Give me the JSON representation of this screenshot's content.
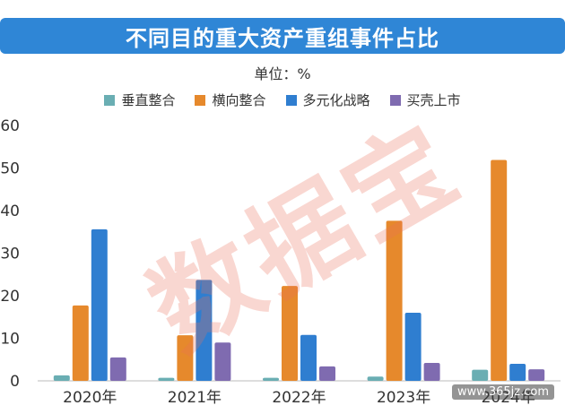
{
  "title": "不同目的重大资产重组事件占比",
  "unit_label": "单位：%",
  "watermark": "数据宝",
  "site_mark": "www.365jz.com",
  "colors": {
    "title_bg": "#2f86d6",
    "vertical": "#6aaeb3",
    "horizontal": "#e6892c",
    "diversified": "#2f7ed0",
    "backdoor": "#7f6bb0"
  },
  "chart_data": {
    "type": "bar",
    "categories": [
      "2020年",
      "2021年",
      "2022年",
      "2023年",
      "2024年"
    ],
    "series": [
      {
        "name": "垂直整合",
        "color": "#6aaeb3",
        "values": [
          1.3,
          0.7,
          0.7,
          1.0,
          2.6
        ]
      },
      {
        "name": "横向整合",
        "color": "#e6892c",
        "values": [
          17.7,
          10.7,
          22.3,
          37.6,
          51.9
        ]
      },
      {
        "name": "多元化战略",
        "color": "#2f7ed0",
        "values": [
          35.6,
          23.7,
          10.8,
          16.0,
          4.0
        ]
      },
      {
        "name": "买壳上市",
        "color": "#7f6bb0",
        "values": [
          5.5,
          9.0,
          3.4,
          4.2,
          2.7
        ]
      }
    ],
    "ylim": [
      0,
      60
    ],
    "yticks": [
      0,
      10,
      20,
      30,
      40,
      50,
      60
    ],
    "legend_position": "top",
    "grid": false
  }
}
